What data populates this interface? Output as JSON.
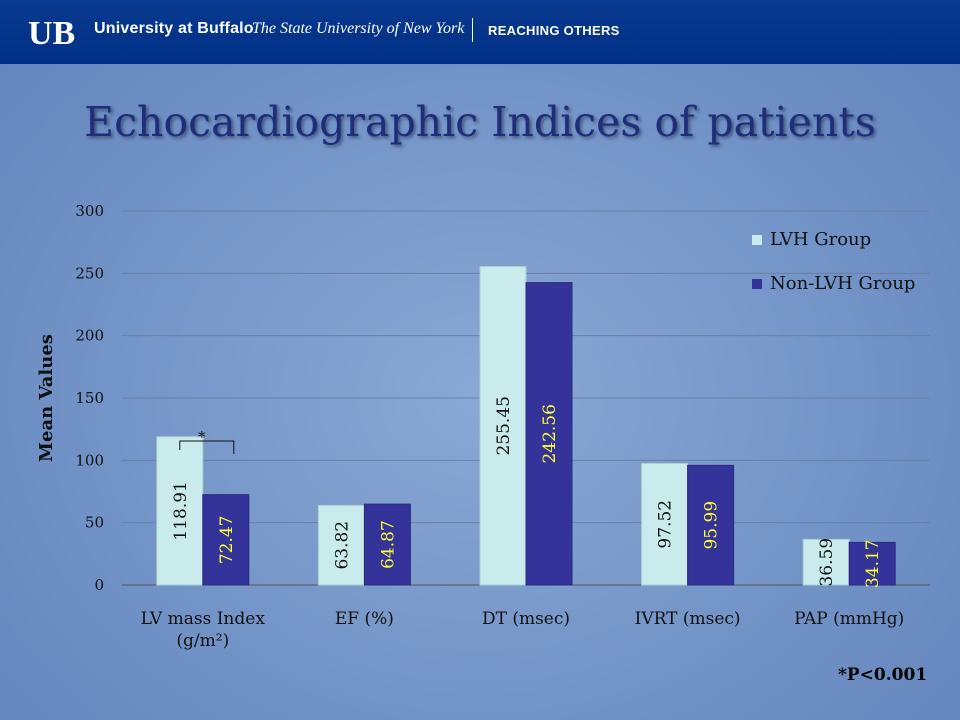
{
  "header": {
    "university": "University at Buffalo",
    "system": "The State University of New York",
    "tagline": "REACHING OTHERS"
  },
  "slide": {
    "title": "Echocardiographic Indices of patients",
    "footnote": "*P<0.001",
    "significance_marker": "*"
  },
  "colors": {
    "lvh": "#c9ebeb",
    "non_lvh": "#333399",
    "lvh_label": "#111111",
    "non_lvh_label": "#ffff33",
    "header_bar": "#003087",
    "title": "#1f2e7a"
  },
  "chart_data": {
    "type": "bar",
    "title": "",
    "ylabel": "Mean Values",
    "xlabel": "",
    "ylim": [
      0,
      300
    ],
    "yticks": [
      0,
      50,
      100,
      150,
      200,
      250,
      300
    ],
    "grid": true,
    "legend_position": "top-right",
    "categories": [
      [
        "LV mass Index",
        "(g/m²)"
      ],
      [
        "EF (%)"
      ],
      [
        "DT (msec)"
      ],
      [
        "IVRT (msec)"
      ],
      [
        "PAP (mmHg)"
      ]
    ],
    "series": [
      {
        "name": "LVH Group",
        "values": [
          118.91,
          63.82,
          255.45,
          97.52,
          36.59
        ],
        "labels": [
          "118.91",
          "63.82",
          "255.45",
          "97.52",
          "36.59"
        ]
      },
      {
        "name": "Non-LVH Group",
        "values": [
          72.47,
          64.87,
          242.56,
          95.99,
          34.17
        ],
        "labels": [
          "72.47",
          "64.87",
          "242.56",
          "95.99",
          "34.17"
        ]
      }
    ]
  }
}
